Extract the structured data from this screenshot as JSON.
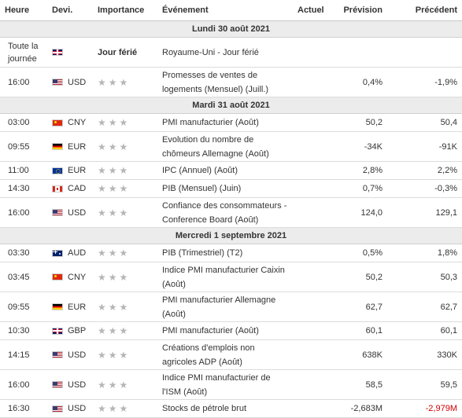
{
  "headers": {
    "time": "Heure",
    "currency": "Devi.",
    "importance": "Importance",
    "event": "Événement",
    "actual": "Actuel",
    "forecast": "Prévision",
    "previous": "Précédent"
  },
  "days": [
    {
      "label": "Lundi 30 août 2021",
      "events": [
        {
          "time": "Toute la journée",
          "flag": "gb",
          "currency": "",
          "importance": "Jour férié",
          "holiday": true,
          "event": "Royaume-Uni - Jour férié",
          "actual": "",
          "forecast": "",
          "previous": ""
        },
        {
          "time": "16:00",
          "flag": "us",
          "currency": "USD",
          "importance": "★★★",
          "event": "Promesses de ventes de logements (Mensuel) (Juill.)",
          "actual": "",
          "forecast": "0,4%",
          "previous": "-1,9%"
        }
      ]
    },
    {
      "label": "Mardi 31 août 2021",
      "events": [
        {
          "time": "03:00",
          "flag": "cn",
          "currency": "CNY",
          "importance": "★★★",
          "event": "PMI manufacturier (Août)",
          "actual": "",
          "forecast": "50,2",
          "previous": "50,4"
        },
        {
          "time": "09:55",
          "flag": "de",
          "currency": "EUR",
          "importance": "★★★",
          "event": "Evolution du nombre de chômeurs Allemagne (Août)",
          "actual": "",
          "forecast": "-34K",
          "previous": "-91K"
        },
        {
          "time": "11:00",
          "flag": "eu",
          "currency": "EUR",
          "importance": "★★★",
          "event": "IPC (Annuel) (Août)",
          "actual": "",
          "forecast": "2,8%",
          "previous": "2,2%"
        },
        {
          "time": "14:30",
          "flag": "ca",
          "currency": "CAD",
          "importance": "★★★",
          "event": "PIB (Mensuel) (Juin)",
          "actual": "",
          "forecast": "0,7%",
          "previous": "-0,3%"
        },
        {
          "time": "16:00",
          "flag": "us",
          "currency": "USD",
          "importance": "★★★",
          "event": "Confiance des consommateurs - Conference Board (Août)",
          "actual": "",
          "forecast": "124,0",
          "previous": "129,1"
        }
      ]
    },
    {
      "label": "Mercredi 1 septembre 2021",
      "events": [
        {
          "time": "03:30",
          "flag": "au",
          "currency": "AUD",
          "importance": "★★★",
          "event": "PIB (Trimestriel) (T2)",
          "actual": "",
          "forecast": "0,5%",
          "previous": "1,8%"
        },
        {
          "time": "03:45",
          "flag": "cn",
          "currency": "CNY",
          "importance": "★★★",
          "event": "Indice PMI manufacturier Caixin (Août)",
          "actual": "",
          "forecast": "50,2",
          "previous": "50,3"
        },
        {
          "time": "09:55",
          "flag": "de",
          "currency": "EUR",
          "importance": "★★★",
          "event": "PMI manufacturier Allemagne (Août)",
          "actual": "",
          "forecast": "62,7",
          "previous": "62,7"
        },
        {
          "time": "10:30",
          "flag": "gb",
          "currency": "GBP",
          "importance": "★★★",
          "event": "PMI manufacturier (Août)",
          "actual": "",
          "forecast": "60,1",
          "previous": "60,1"
        },
        {
          "time": "14:15",
          "flag": "us",
          "currency": "USD",
          "importance": "★★★",
          "event": "Créations d'emplois non agricoles ADP (Août)",
          "actual": "",
          "forecast": "638K",
          "previous": "330K"
        },
        {
          "time": "16:00",
          "flag": "us",
          "currency": "USD",
          "importance": "★★★",
          "event": "Indice PMI manufacturier de l'ISM (Août)",
          "actual": "",
          "forecast": "58,5",
          "previous": "59,5"
        },
        {
          "time": "16:30",
          "flag": "us",
          "currency": "USD",
          "importance": "★★★",
          "event": "Stocks de pétrole brut",
          "actual": "",
          "forecast": "-2,683M",
          "previous": "-2,979M",
          "previous_color": "#d40000"
        }
      ]
    }
  ]
}
